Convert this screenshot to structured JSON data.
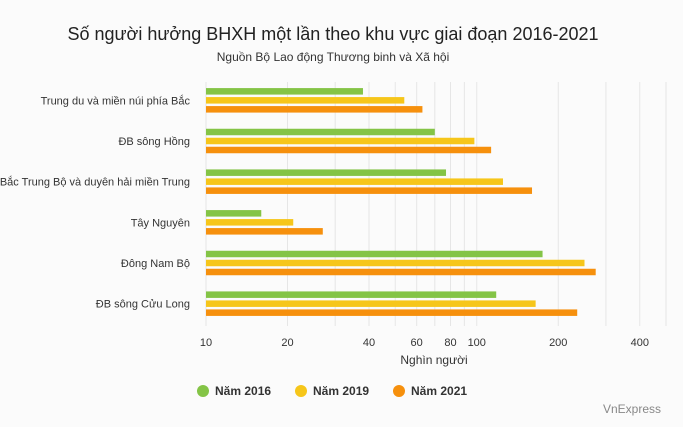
{
  "title": "Số người hưởng BHXH một lần theo khu vực giai đoạn 2016-2021",
  "subtitle": "Nguồn Bộ Lao động Thương binh và Xã hội",
  "credit": "VnExpress",
  "chart_data": {
    "type": "bar",
    "orientation": "horizontal",
    "xscale": "log",
    "xlim": [
      10,
      500
    ],
    "xlabel": "Nghìn người",
    "xticks": [
      10,
      20,
      40,
      60,
      80,
      100,
      200,
      400
    ],
    "categories": [
      "Trung du và miền núi phía Bắc",
      "ĐB sông Hồng",
      "Bắc Trung Bộ và duyên hải miền Trung",
      "Tây Nguyên",
      "Đông Nam Bộ",
      "ĐB sông Cửu Long"
    ],
    "series": [
      {
        "name": "Năm 2016",
        "color": "#84c446",
        "values": [
          38,
          70,
          77,
          16,
          175,
          118
        ]
      },
      {
        "name": "Năm 2019",
        "color": "#f6c61a",
        "values": [
          54,
          98,
          125,
          21,
          250,
          165
        ]
      },
      {
        "name": "Năm 2021",
        "color": "#f6900d",
        "values": [
          63,
          113,
          160,
          27,
          275,
          235
        ]
      }
    ],
    "grid": true,
    "legend": "bottom"
  }
}
